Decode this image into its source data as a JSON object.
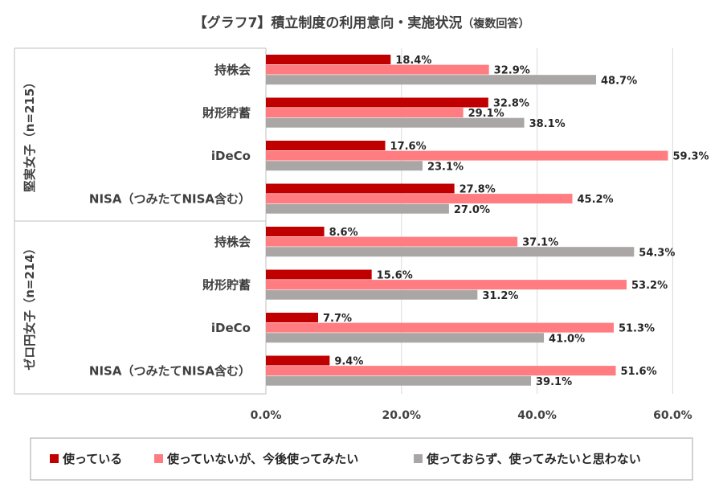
{
  "title": {
    "main": "【グラフ7】積立制度の利用意向・実施状況",
    "note": "（複数回答）"
  },
  "colors": {
    "using": "#C00000",
    "want_to_use": "#FF7C80",
    "not_using": "#ABA6A6",
    "grid": "#D9D9D9",
    "text": "#404040"
  },
  "chart_data": {
    "type": "bar",
    "orientation": "horizontal",
    "xlim": [
      0,
      60
    ],
    "xticks": [
      "0.0%",
      "20.0%",
      "40.0%",
      "60.0%"
    ],
    "grid": true,
    "legend_position": "bottom",
    "series": [
      {
        "name": "使っている",
        "color": "#C00000"
      },
      {
        "name": "使っていないが、今後使ってみたい",
        "color": "#FF7C80"
      },
      {
        "name": "使っておらず、使ってみたいと思わない",
        "color": "#ABA6A6"
      }
    ],
    "groups": [
      {
        "name": "堅実女子（n=215）",
        "categories": [
          {
            "label": "持株会",
            "values": [
              18.4,
              32.9,
              48.7
            ],
            "labels": [
              "18.4%",
              "32.9%",
              "48.7%"
            ]
          },
          {
            "label": "財形貯蓄",
            "values": [
              32.8,
              29.1,
              38.1
            ],
            "labels": [
              "32.8%",
              "29.1%",
              "38.1%"
            ]
          },
          {
            "label": "iDeCo",
            "values": [
              17.6,
              59.3,
              23.1
            ],
            "labels": [
              "17.6%",
              "59.3%",
              "23.1%"
            ]
          },
          {
            "label": "NISA（つみたてNISA含む）",
            "values": [
              27.8,
              45.2,
              27.0
            ],
            "labels": [
              "27.8%",
              "45.2%",
              "27.0%"
            ]
          }
        ]
      },
      {
        "name": "ゼロ円女子（n=214）",
        "categories": [
          {
            "label": "持株会",
            "values": [
              8.6,
              37.1,
              54.3
            ],
            "labels": [
              "8.6%",
              "37.1%",
              "54.3%"
            ]
          },
          {
            "label": "財形貯蓄",
            "values": [
              15.6,
              53.2,
              31.2
            ],
            "labels": [
              "15.6%",
              "53.2%",
              "31.2%"
            ]
          },
          {
            "label": "iDeCo",
            "values": [
              7.7,
              51.3,
              41.0
            ],
            "labels": [
              "7.7%",
              "51.3%",
              "41.0%"
            ]
          },
          {
            "label": "NISA（つみたてNISA含む）",
            "values": [
              9.4,
              51.6,
              39.1
            ],
            "labels": [
              "9.4%",
              "51.6%",
              "39.1%"
            ]
          }
        ]
      }
    ]
  }
}
